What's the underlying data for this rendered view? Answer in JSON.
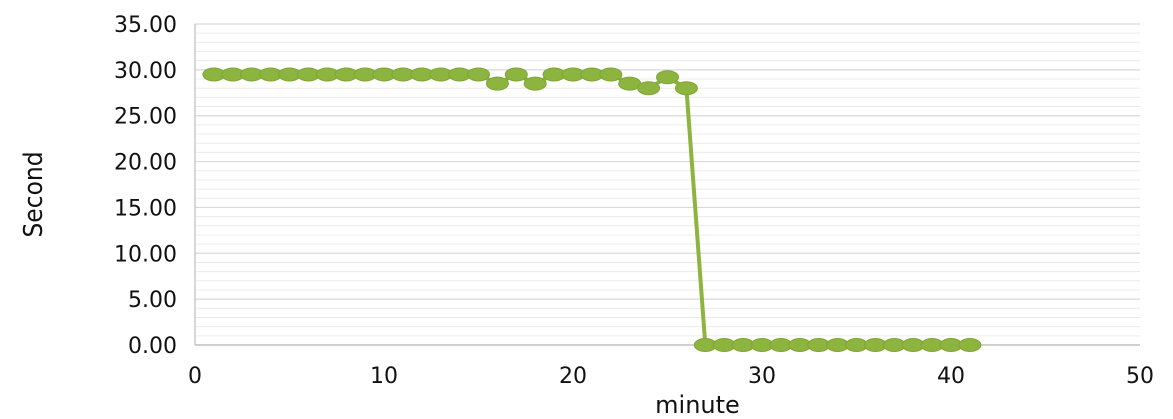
{
  "chart_data": {
    "type": "line",
    "title": "",
    "xlabel": "minute",
    "ylabel": "Second",
    "xlim": [
      0,
      50
    ],
    "ylim": [
      0,
      35
    ],
    "xticks": [
      "0",
      "10",
      "20",
      "30",
      "40",
      "50"
    ],
    "yticks": [
      "0.00",
      "5.00",
      "10.00",
      "15.00",
      "20.00",
      "25.00",
      "30.00",
      "35.00"
    ],
    "grid": true,
    "colors": {
      "series": "#8db43e",
      "gridline": "#d9d9d9",
      "axis": "#bfbfbf"
    },
    "series": [
      {
        "x": [
          1,
          2,
          3,
          4,
          5,
          6,
          7,
          8,
          9,
          10,
          11,
          12,
          13,
          14,
          15,
          16,
          17,
          18,
          19,
          20,
          21,
          22,
          23,
          24,
          25,
          26,
          27,
          28,
          29,
          30,
          31,
          32,
          33,
          34,
          35,
          36,
          37,
          38,
          39,
          40,
          41
        ],
        "values": [
          29.5,
          29.5,
          29.5,
          29.5,
          29.5,
          29.5,
          29.5,
          29.5,
          29.5,
          29.5,
          29.5,
          29.5,
          29.5,
          29.5,
          29.5,
          28.5,
          29.5,
          28.5,
          29.5,
          29.5,
          29.5,
          29.5,
          28.5,
          28.0,
          29.2,
          28.0,
          0,
          0,
          0,
          0,
          0,
          0,
          0,
          0,
          0,
          0,
          0,
          0,
          0,
          0,
          0
        ]
      }
    ]
  }
}
